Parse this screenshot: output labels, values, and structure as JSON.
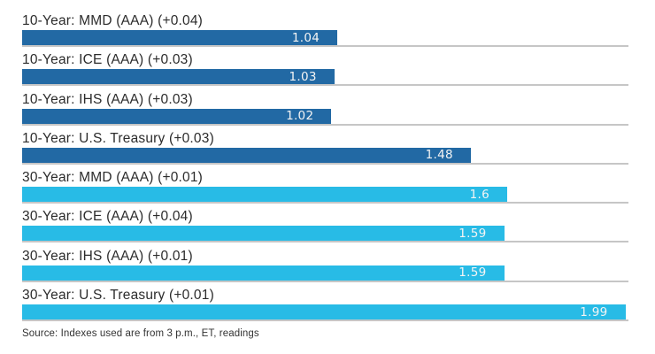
{
  "chart_data": {
    "type": "bar",
    "orientation": "horizontal",
    "title": "",
    "xlabel": "",
    "ylabel": "",
    "xlim": [
      0,
      2
    ],
    "grid": "baseline-per-bar",
    "colors": {
      "10-year": "#2269a4",
      "30-year": "#28bbe6",
      "gridline": "#c6c6c6",
      "value_text": "#f4f4f4",
      "label_text": "#2c2c2c"
    },
    "bars": [
      {
        "label": "10-Year: MMD (AAA) (+0.04)",
        "value": 1.04,
        "display": "1.04",
        "group": "10-year"
      },
      {
        "label": "10-Year: ICE (AAA) (+0.03)",
        "value": 1.03,
        "display": "1.03",
        "group": "10-year"
      },
      {
        "label": "10-Year: IHS (AAA) (+0.03)",
        "value": 1.02,
        "display": "1.02",
        "group": "10-year"
      },
      {
        "label": "10-Year: U.S. Treasury (+0.03)",
        "value": 1.48,
        "display": "1.48",
        "group": "10-year"
      },
      {
        "label": "30-Year: MMD (AAA) (+0.01)",
        "value": 1.6,
        "display": "1.6",
        "group": "30-year"
      },
      {
        "label": "30-Year: ICE (AAA) (+0.04)",
        "value": 1.59,
        "display": "1.59",
        "group": "30-year"
      },
      {
        "label": "30-Year: IHS (AAA) (+0.01)",
        "value": 1.59,
        "display": "1.59",
        "group": "30-year"
      },
      {
        "label": "30-Year: U.S. Treasury (+0.01)",
        "value": 1.99,
        "display": "1.99",
        "group": "30-year"
      }
    ],
    "source": "Source: Indexes used are from 3 p.m., ET, readings"
  }
}
